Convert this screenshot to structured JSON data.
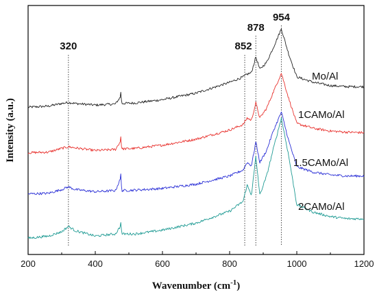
{
  "chart_data": {
    "type": "line",
    "xlabel": "Wavenumber (cm-1)",
    "xlabel_base": "Wavenumber (cm",
    "xlabel_sup": "-1",
    "xlabel_close": ")",
    "ylabel": "Intensity (a.u.)",
    "xlim": [
      200,
      1200
    ],
    "x_ticks": [
      200,
      400,
      600,
      800,
      1000,
      1200
    ],
    "y_ticks_shown": false,
    "grid": false,
    "legend": "none (labels placed next to each trace)",
    "peak_markers": [
      {
        "label": "320",
        "x": 320
      },
      {
        "label": "852",
        "x": 845
      },
      {
        "label": "878",
        "x": 878
      },
      {
        "label": "954",
        "x": 954
      }
    ],
    "series": [
      {
        "name": "Mo/Al",
        "color": "#222222",
        "baseline": 2.72,
        "x": [
          200,
          260,
          300,
          320,
          340,
          400,
          460,
          475,
          480,
          520,
          600,
          700,
          800,
          840,
          852,
          865,
          878,
          890,
          910,
          930,
          954,
          975,
          1000,
          1050,
          1100,
          1150,
          1200
        ],
        "values": [
          2.72,
          2.74,
          2.79,
          2.81,
          2.79,
          2.76,
          2.78,
          2.91,
          2.79,
          2.8,
          2.86,
          2.98,
          3.18,
          3.28,
          3.33,
          3.36,
          3.65,
          3.42,
          3.55,
          3.82,
          4.17,
          3.72,
          3.28,
          3.18,
          3.12,
          3.1,
          3.1
        ]
      },
      {
        "name": "1CAMo/Al",
        "color": "#e8322e",
        "baseline": 1.88,
        "x": [
          200,
          260,
          300,
          320,
          340,
          400,
          460,
          475,
          480,
          520,
          600,
          700,
          800,
          840,
          852,
          865,
          878,
          890,
          910,
          930,
          954,
          975,
          1000,
          1050,
          1100,
          1150,
          1200
        ],
        "values": [
          1.88,
          1.89,
          1.96,
          1.99,
          1.97,
          1.92,
          1.94,
          2.09,
          1.95,
          1.96,
          2.02,
          2.13,
          2.3,
          2.4,
          2.52,
          2.48,
          2.8,
          2.52,
          2.7,
          3.0,
          3.35,
          2.9,
          2.42,
          2.33,
          2.28,
          2.26,
          2.25
        ]
      },
      {
        "name": "1.5CAMo/Al",
        "color": "#2a2fd6",
        "baseline": 1.12,
        "x": [
          200,
          260,
          300,
          320,
          340,
          400,
          460,
          475,
          480,
          520,
          600,
          700,
          800,
          840,
          852,
          865,
          878,
          890,
          910,
          930,
          954,
          975,
          1000,
          1050,
          1100,
          1150,
          1200
        ],
        "values": [
          1.12,
          1.13,
          1.2,
          1.25,
          1.2,
          1.16,
          1.18,
          1.4,
          1.18,
          1.19,
          1.22,
          1.3,
          1.45,
          1.56,
          1.7,
          1.64,
          2.08,
          1.7,
          1.92,
          2.28,
          2.63,
          2.12,
          1.62,
          1.52,
          1.47,
          1.45,
          1.45
        ]
      },
      {
        "name": "2CAMo/Al",
        "color": "#1e9a93",
        "baseline": 0.3,
        "x": [
          200,
          260,
          300,
          320,
          340,
          400,
          460,
          475,
          480,
          520,
          600,
          700,
          800,
          840,
          852,
          865,
          878,
          890,
          910,
          930,
          954,
          975,
          1000,
          1050,
          1100,
          1150,
          1200
        ],
        "values": [
          0.3,
          0.34,
          0.42,
          0.52,
          0.44,
          0.34,
          0.38,
          0.52,
          0.38,
          0.38,
          0.45,
          0.58,
          0.8,
          0.98,
          1.28,
          1.1,
          1.8,
          1.1,
          1.45,
          1.95,
          2.52,
          1.85,
          0.92,
          0.78,
          0.7,
          0.66,
          0.66
        ]
      }
    ]
  }
}
